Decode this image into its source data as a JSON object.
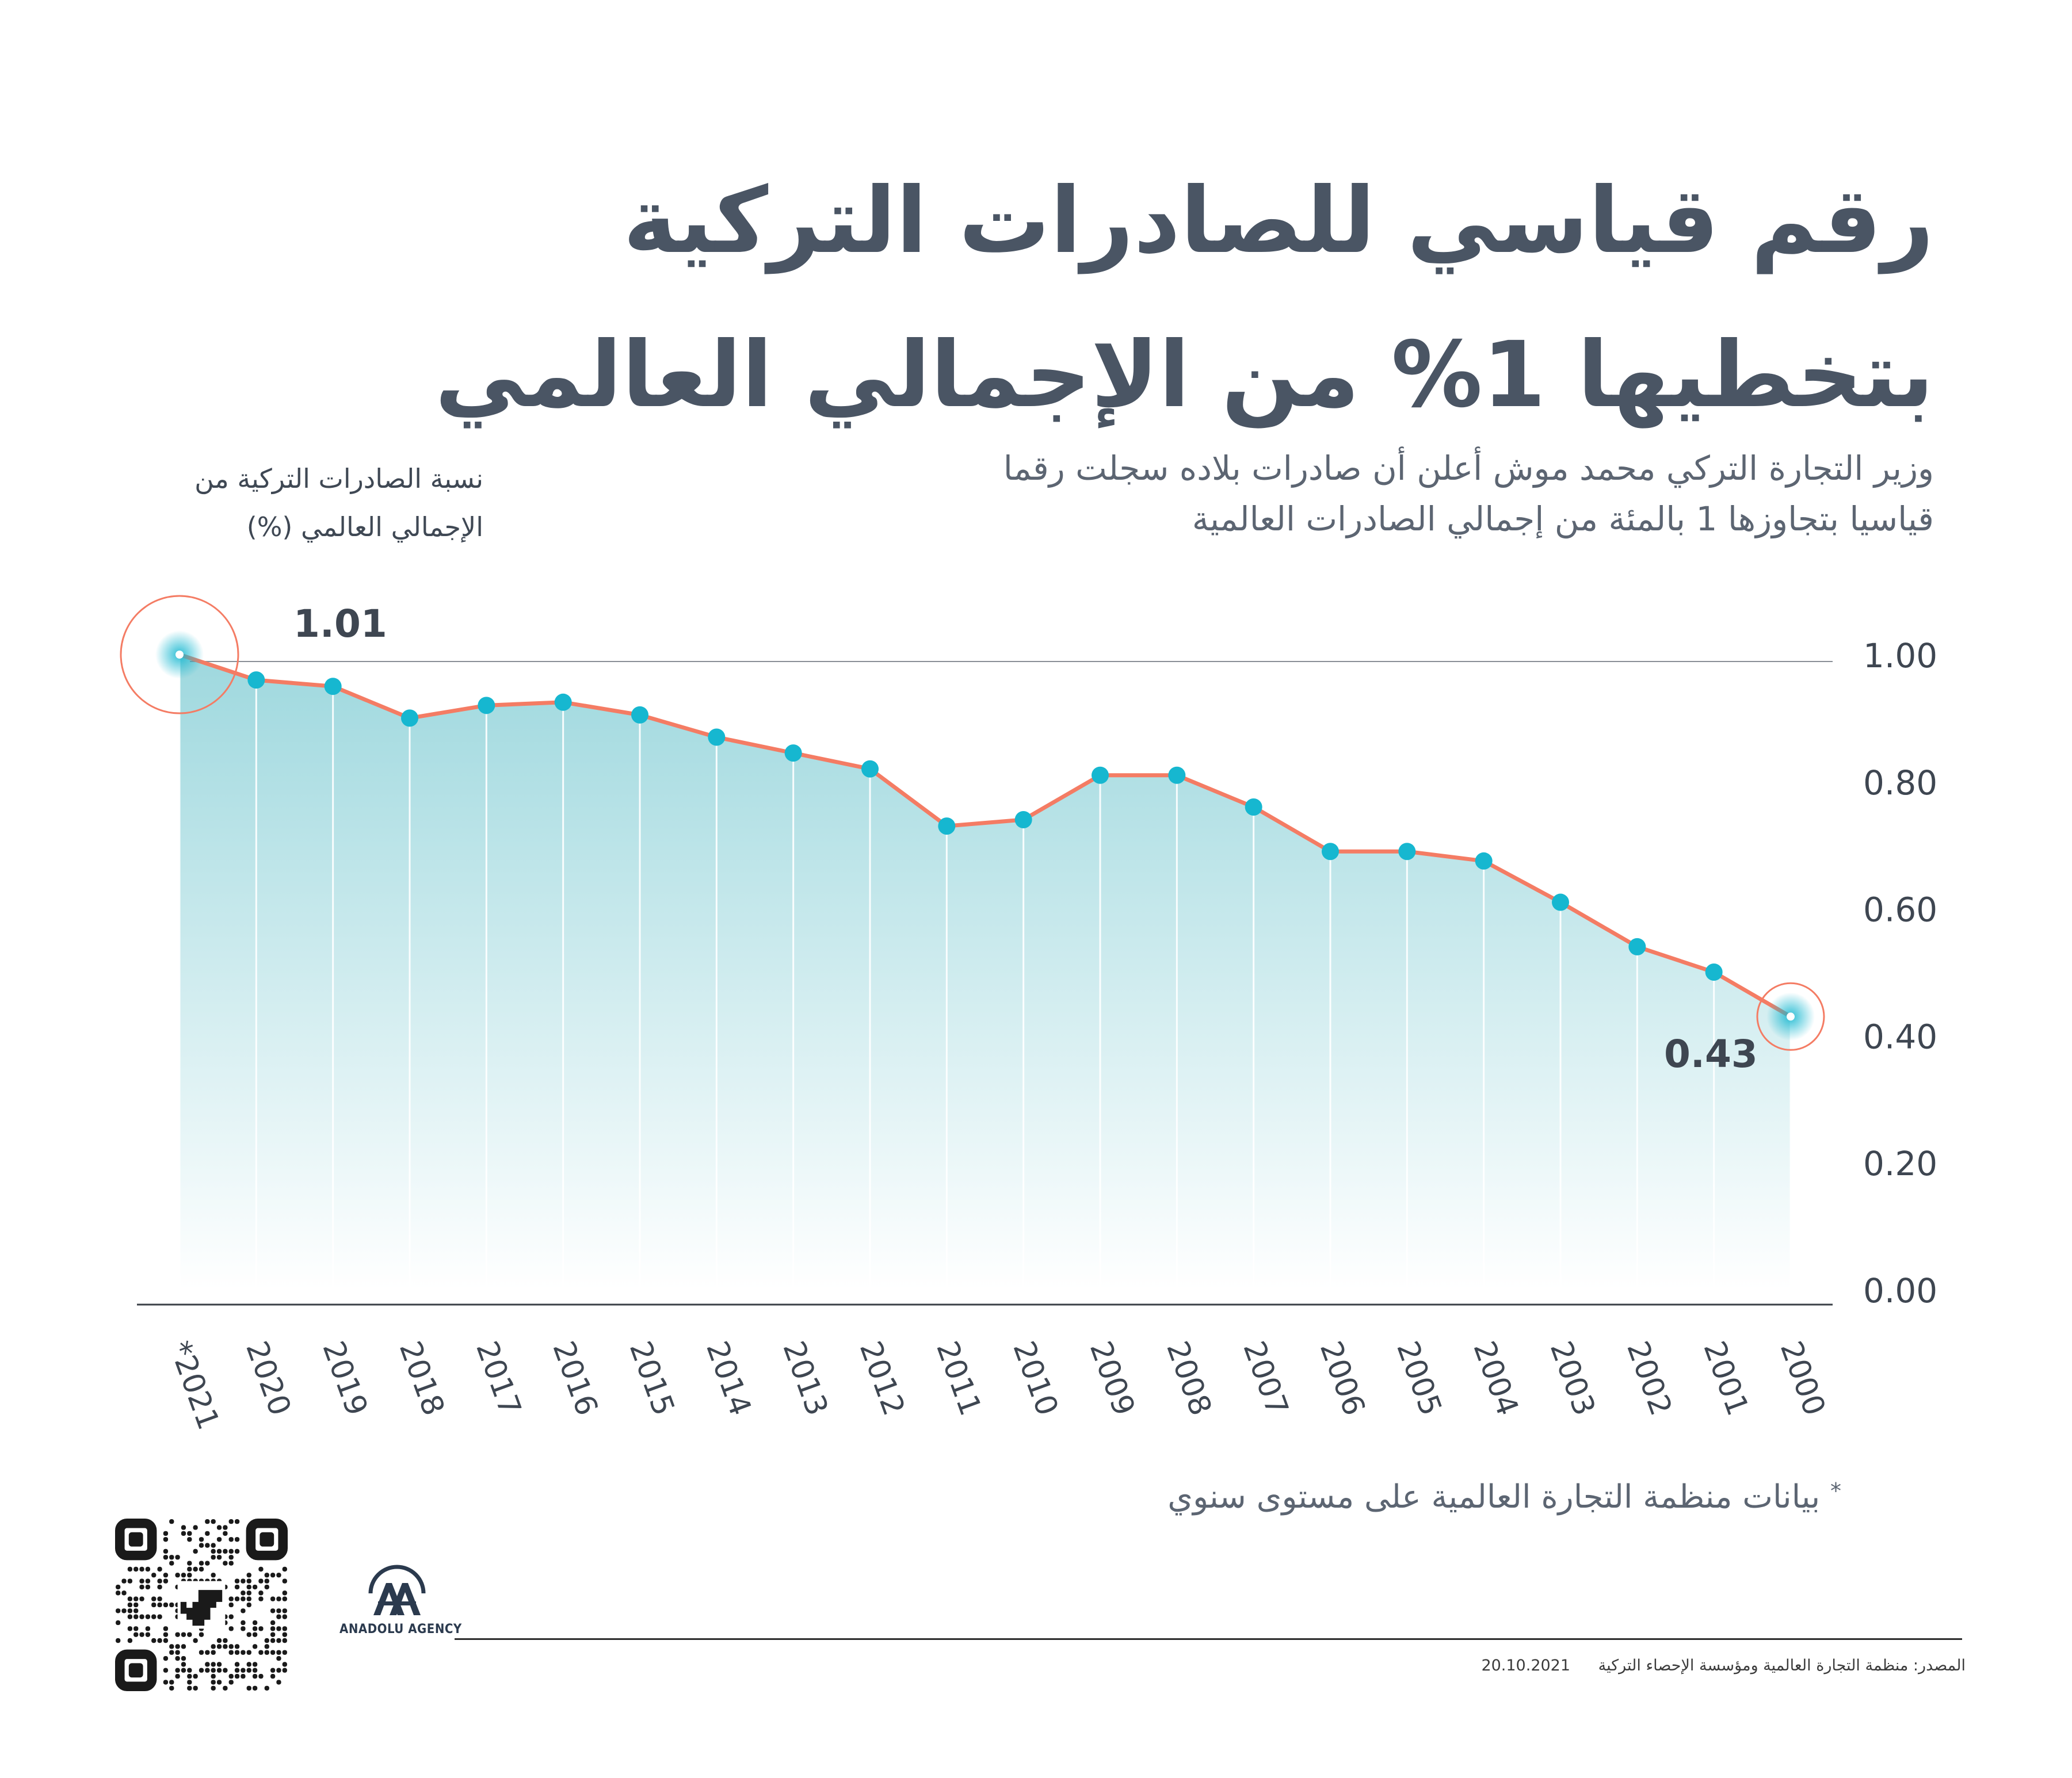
{
  "title": {
    "line1": "رقم قياسي للصادرات التركية",
    "line2": "بتخطيها 1% من الإجمالي العالمي"
  },
  "subtitle": {
    "line1": "وزير التجارة التركي محمد موش أعلن أن صادرات بلاده سجلت رقما",
    "line2": "قياسيا بتجاوزها 1 بالمئة من إجمالي الصادرات العالمية"
  },
  "axis_caption": {
    "line1": "نسبة الصادرات التركية من",
    "line2": "الإجمالي العالمي (%)"
  },
  "chart_data": {
    "type": "area",
    "categories": [
      "*2021",
      "2020",
      "2019",
      "2018",
      "2017",
      "2016",
      "2015",
      "2014",
      "2013",
      "2012",
      "2011",
      "2010",
      "2009",
      "2008",
      "2007",
      "2006",
      "2005",
      "2004",
      "2003",
      "2002",
      "2001",
      "2000"
    ],
    "values": [
      1.01,
      0.96,
      0.95,
      0.9,
      0.92,
      0.925,
      0.905,
      0.87,
      0.845,
      0.82,
      0.73,
      0.74,
      0.81,
      0.81,
      0.76,
      0.69,
      0.69,
      0.675,
      0.61,
      0.54,
      0.5,
      0.43
    ],
    "y_ticks": [
      "1.00",
      "0.80",
      "0.60",
      "0.40",
      "0.20",
      "0.00"
    ],
    "ylim": [
      0,
      1.0
    ],
    "annotations": [
      {
        "label": "1.01",
        "category": "*2021"
      },
      {
        "label": "0.43",
        "category": "2000"
      }
    ],
    "colors": {
      "line": "#f47c64",
      "marker": "#16b7d0",
      "fill": "#9ed8de",
      "grid": "#e9eef0"
    }
  },
  "footnote": {
    "star": "*",
    "text": "بيانات منظمة التجارة العالمية على مستوى سنوي"
  },
  "logo": {
    "brand": "ANADOLU AGENCY",
    "icon": "aa-logo-icon"
  },
  "qr": {
    "icon": "qr-code-icon"
  },
  "source": {
    "text": "المصدر: منظمة التجارة العالمية ومؤسسة الإحصاء التركية",
    "date": "20.10.2021"
  }
}
